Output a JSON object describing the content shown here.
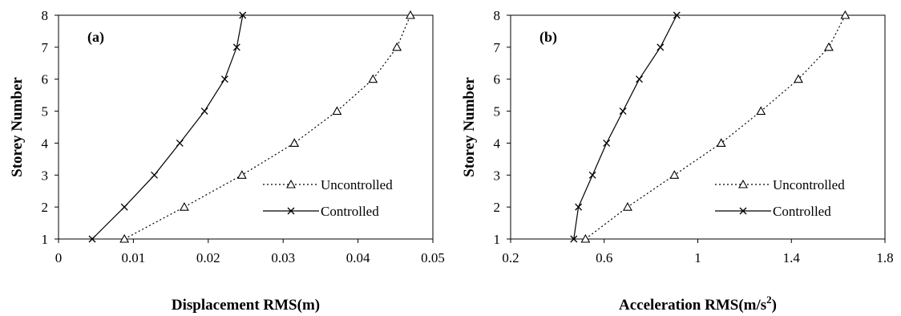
{
  "chart_data": [
    {
      "type": "line",
      "panel_label": "(a)",
      "xlabel": "Displacement RMS(m)",
      "ylabel": "Storey Number",
      "xlim": [
        0,
        0.05
      ],
      "ylim": [
        1,
        8
      ],
      "xticks": [
        "0",
        "0.01",
        "0.02",
        "0.03",
        "0.04",
        "0.05"
      ],
      "yticks": [
        "1",
        "2",
        "3",
        "4",
        "5",
        "6",
        "7",
        "8"
      ],
      "legend_position": "bottom-right",
      "series": [
        {
          "name": "Uncontrolled",
          "marker": "triangle",
          "style": "dotted",
          "x": [
            0.0088,
            0.0168,
            0.0245,
            0.0315,
            0.0372,
            0.042,
            0.0452,
            0.047
          ],
          "y": [
            1,
            2,
            3,
            4,
            5,
            6,
            7,
            8
          ]
        },
        {
          "name": "Controlled",
          "marker": "x",
          "style": "solid",
          "x": [
            0.0045,
            0.0088,
            0.0128,
            0.0162,
            0.0195,
            0.0222,
            0.0238,
            0.0246
          ],
          "y": [
            1,
            2,
            3,
            4,
            5,
            6,
            7,
            8
          ]
        }
      ]
    },
    {
      "type": "line",
      "panel_label": "(b)",
      "xlabel": "Acceleration RMS(m/s",
      "xlabel_sup": "2",
      "xlabel_end": ")",
      "ylabel": "Storey Number",
      "xlim": [
        0.2,
        1.8
      ],
      "ylim": [
        1,
        8
      ],
      "xticks": [
        "0.2",
        "0.6",
        "1",
        "1.4",
        "1.8"
      ],
      "yticks": [
        "1",
        "2",
        "3",
        "4",
        "5",
        "6",
        "7",
        "8"
      ],
      "legend_position": "bottom-right",
      "series": [
        {
          "name": "Uncontrolled",
          "marker": "triangle",
          "style": "dotted",
          "x": [
            0.52,
            0.7,
            0.9,
            1.1,
            1.27,
            1.43,
            1.56,
            1.63
          ],
          "y": [
            1,
            2,
            3,
            4,
            5,
            6,
            7,
            8
          ]
        },
        {
          "name": "Controlled",
          "marker": "x",
          "style": "solid",
          "x": [
            0.47,
            0.49,
            0.55,
            0.61,
            0.68,
            0.75,
            0.84,
            0.91
          ],
          "y": [
            1,
            2,
            3,
            4,
            5,
            6,
            7,
            8
          ]
        }
      ]
    }
  ]
}
